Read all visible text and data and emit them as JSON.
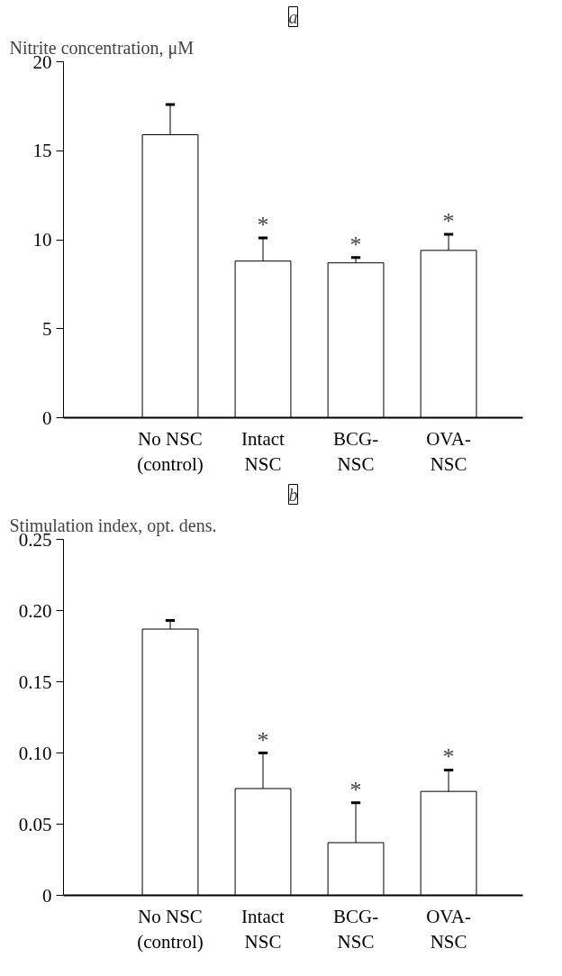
{
  "chart_data": [
    {
      "type": "bar",
      "title": "a",
      "ylabel": "Nitrite concentration, μM",
      "categories": [
        "No NSC\n(control)",
        "Intact\nNSC",
        "BCG-\nNSC",
        "OVA-\nNSC"
      ],
      "values": [
        15.9,
        8.8,
        8.7,
        9.4
      ],
      "color": "#ffffff",
      "errors": [
        [
          15.9,
          17.6
        ],
        [
          8.8,
          10.1
        ],
        [
          8.7,
          9.0
        ],
        [
          9.4,
          10.3
        ]
      ],
      "ylim": [
        0,
        20
      ],
      "yticks": [
        0,
        5,
        10,
        15,
        20
      ],
      "grid": false,
      "annotations": [
        {
          "text": "*",
          "x": "Intact\nNSC",
          "y": 10.1
        },
        {
          "text": "*",
          "x": "BCG-\nNSC",
          "y": 9.0
        },
        {
          "text": "*",
          "x": "OVA-\nNSC",
          "y": 10.3
        }
      ]
    },
    {
      "type": "bar",
      "title": "b",
      "ylabel": "Stimulation index, opt. dens.",
      "categories": [
        "No NSC\n(control)",
        "Intact\nNSC",
        "BCG-\nNSC",
        "OVA-\nNSC"
      ],
      "values": [
        0.187,
        0.075,
        0.037,
        0.073
      ],
      "color": "#ffffff",
      "errors": [
        [
          0.187,
          0.193
        ],
        [
          0.075,
          0.1
        ],
        [
          0.037,
          0.065
        ],
        [
          0.073,
          0.088
        ]
      ],
      "ylim": [
        0,
        0.25
      ],
      "yticks": [
        0,
        0.05,
        {
          "value": 0.1,
          "label": "0.10"
        },
        0.15,
        {
          "value": 0.2,
          "label": "0.20"
        },
        0.25
      ],
      "grid": false,
      "annotations": [
        {
          "text": "*",
          "x": "Intact\nNSC",
          "y": 0.1
        },
        {
          "text": "*",
          "x": "BCG-\nNSC",
          "y": 0.065
        },
        {
          "text": "*",
          "x": "OVA-\nNSC",
          "y": 0.088
        }
      ]
    }
  ]
}
